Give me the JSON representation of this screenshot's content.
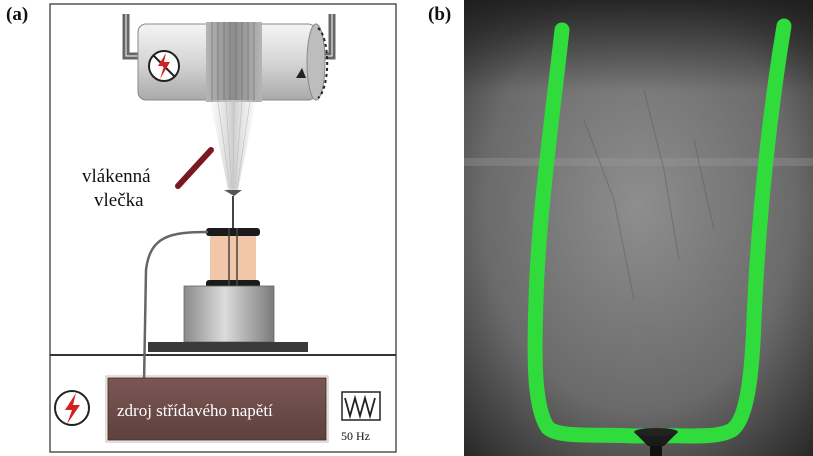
{
  "panel_a": {
    "label": "(a)",
    "jet_label_line1": "vlákenná",
    "jet_label_line2": "vlečka",
    "power_source_label": "zdroj střídavého napětí",
    "frequency_label": "50 Hz",
    "icons": [
      "no-high-voltage-icon",
      "high-voltage-icon",
      "ac-waveform-icon",
      "rotation-arrow-icon"
    ]
  },
  "panel_b": {
    "label": "(b)"
  },
  "colors": {
    "green_overlay": "#2fdc3c",
    "source_box": "#6b4a47",
    "jet_marker": "#7a1822",
    "coil": "#f2c6a8"
  }
}
